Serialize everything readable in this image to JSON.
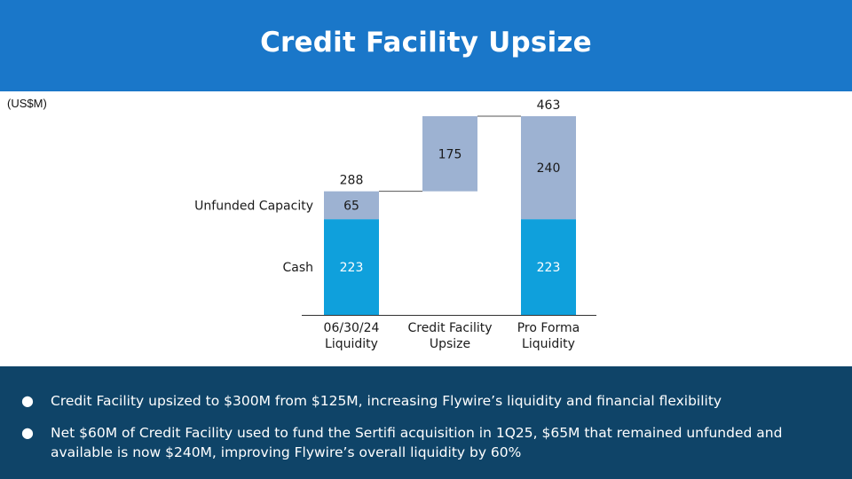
{
  "header": {
    "title": "Credit Facility Upsize",
    "bg_color": "#1a77c9"
  },
  "chart_data": {
    "type": "bar",
    "subtype": "waterfall",
    "unit_label": "(US$M)",
    "categories": [
      "06/30/24\nLiquidity",
      "Credit Facility\nUpsize",
      "Pro Forma\nLiquidity"
    ],
    "row_labels": [
      "Unfunded Capacity",
      "Cash"
    ],
    "series": [
      {
        "name": "Cash",
        "values": [
          223,
          0,
          223
        ],
        "color": "#0fa0dc"
      },
      {
        "name": "Unfunded Capacity",
        "values": [
          65,
          175,
          240
        ],
        "color": "#9db2d2"
      }
    ],
    "bases": [
      0,
      288,
      0
    ],
    "totals": [
      288,
      null,
      463
    ],
    "ylim": [
      0,
      463
    ],
    "legend": "none",
    "grid": false
  },
  "footer": {
    "bg_color": "#0f4468",
    "bullets": [
      "Credit Facility upsized to $300M from $125M, increasing Flywire’s liquidity and financial flexibility",
      "Net $60M of Credit Facility used to fund the Sertifi acquisition in 1Q25, $65M that remained unfunded and available is now $240M, improving  Flywire’s overall liquidity by 60%"
    ],
    "bullet_symbol": "●"
  }
}
